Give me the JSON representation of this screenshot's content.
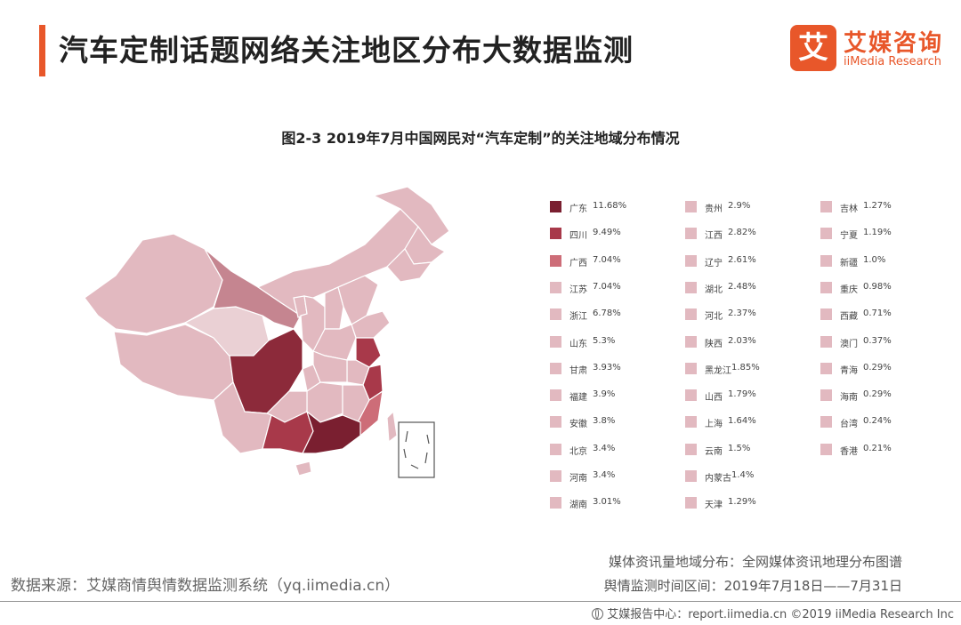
{
  "header": {
    "title": "汽车定制话题网络关注地区分布大数据监测",
    "logo_cn": "艾媒咨询",
    "logo_en": "iiMedia Research",
    "logo_mark": "艾"
  },
  "chart_data": {
    "type": "choropleth-map",
    "title": "图2-3 2019年7月中国网民对“汽车定制”的关注地域分布情况",
    "unit": "%",
    "legend_placement": "right",
    "series": [
      {
        "province": "广东",
        "label": "11.68%",
        "value": 11.68,
        "color": "#7a1f30"
      },
      {
        "province": "四川",
        "label": "9.49%",
        "value": 9.49,
        "color": "#a8394a"
      },
      {
        "province": "广西",
        "label": "7.04%",
        "value": 7.04,
        "color": "#cd6d78"
      },
      {
        "province": "江苏",
        "label": "7.04%",
        "value": 7.04,
        "color": "#e2b9c0"
      },
      {
        "province": "浙江",
        "label": "6.78%",
        "value": 6.78,
        "color": "#e2b9c0"
      },
      {
        "province": "山东",
        "label": "5.3%",
        "value": 5.3,
        "color": "#e2b9c0"
      },
      {
        "province": "甘肃",
        "label": "3.93%",
        "value": 3.93,
        "color": "#e2b9c0"
      },
      {
        "province": "福建",
        "label": "3.9%",
        "value": 3.9,
        "color": "#e2b9c0"
      },
      {
        "province": "安徽",
        "label": "3.8%",
        "value": 3.8,
        "color": "#e2b9c0"
      },
      {
        "province": "北京",
        "label": "3.4%",
        "value": 3.4,
        "color": "#e2b9c0"
      },
      {
        "province": "河南",
        "label": "3.4%",
        "value": 3.4,
        "color": "#e2b9c0"
      },
      {
        "province": "湖南",
        "label": "3.01%",
        "value": 3.01,
        "color": "#e2b9c0"
      },
      {
        "province": "贵州",
        "label": "2.9%",
        "value": 2.9,
        "color": "#e2b9c0"
      },
      {
        "province": "江西",
        "label": "2.82%",
        "value": 2.82,
        "color": "#e2b9c0"
      },
      {
        "province": "辽宁",
        "label": "2.61%",
        "value": 2.61,
        "color": "#e2b9c0"
      },
      {
        "province": "湖北",
        "label": "2.48%",
        "value": 2.48,
        "color": "#e2b9c0"
      },
      {
        "province": "河北",
        "label": "2.37%",
        "value": 2.37,
        "color": "#e2b9c0"
      },
      {
        "province": "陕西",
        "label": "2.03%",
        "value": 2.03,
        "color": "#e2b9c0"
      },
      {
        "province": "黑龙江",
        "label": "1.85%",
        "value": 1.85,
        "color": "#e2b9c0"
      },
      {
        "province": "山西",
        "label": "1.79%",
        "value": 1.79,
        "color": "#e2b9c0"
      },
      {
        "province": "上海",
        "label": "1.64%",
        "value": 1.64,
        "color": "#e2b9c0"
      },
      {
        "province": "云南",
        "label": "1.5%",
        "value": 1.5,
        "color": "#e2b9c0"
      },
      {
        "province": "内蒙古",
        "label": "1.4%",
        "value": 1.4,
        "color": "#e2b9c0"
      },
      {
        "province": "天津",
        "label": "1.29%",
        "value": 1.29,
        "color": "#e2b9c0"
      },
      {
        "province": "吉林",
        "label": "1.27%",
        "value": 1.27,
        "color": "#e2b9c0"
      },
      {
        "province": "宁夏",
        "label": "1.19%",
        "value": 1.19,
        "color": "#e2b9c0"
      },
      {
        "province": "新疆",
        "label": "1.0%",
        "value": 1.0,
        "color": "#e2b9c0"
      },
      {
        "province": "重庆",
        "label": "0.98%",
        "value": 0.98,
        "color": "#e2b9c0"
      },
      {
        "province": "西藏",
        "label": "0.71%",
        "value": 0.71,
        "color": "#e2b9c0"
      },
      {
        "province": "澳门",
        "label": "0.37%",
        "value": 0.37,
        "color": "#e2b9c0"
      },
      {
        "province": "青海",
        "label": "0.29%",
        "value": 0.29,
        "color": "#e2b9c0"
      },
      {
        "province": "海南",
        "label": "0.29%",
        "value": 0.29,
        "color": "#e2b9c0"
      },
      {
        "province": "台湾",
        "label": "0.24%",
        "value": 0.24,
        "color": "#e2b9c0"
      },
      {
        "province": "香港",
        "label": "0.21%",
        "value": 0.21,
        "color": "#e2b9c0"
      }
    ]
  },
  "footer": {
    "source": "数据来源：艾媒商情舆情数据监测系统（yq.iimedia.cn）",
    "note_distribution": "媒体资讯量地域分布：全网媒体资讯地理分布图谱",
    "note_period": "舆情监测时间区间：2019年7月18日——7月31日",
    "copyright": "艾媒报告中心：report.iimedia.cn ©2019 iiMedia Research Inc"
  }
}
